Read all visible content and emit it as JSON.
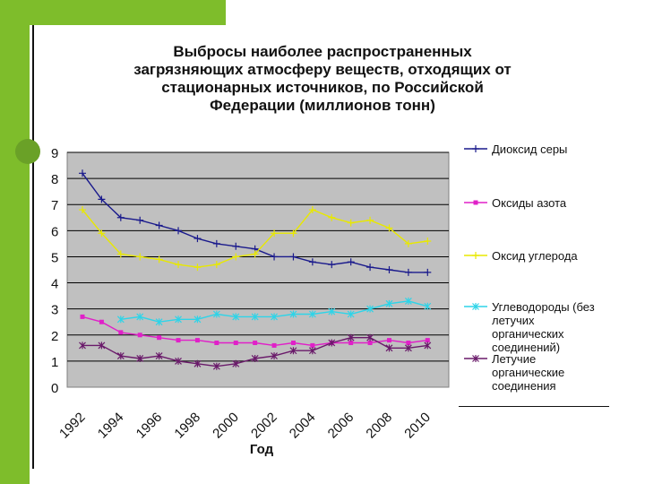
{
  "chart_data": {
    "type": "line",
    "title_lines": [
      "Выбросы наиболее распространенных",
      "загрязняющих атмосферу веществ, отходящих от",
      "стационарных источников, по Российской",
      "Федерации  (миллионов тонн)"
    ],
    "xlabel": "Год",
    "ylabel": "",
    "ylim": [
      0,
      9
    ],
    "yticks": [
      "0",
      "1",
      "2",
      "3",
      "4",
      "5",
      "6",
      "7",
      "8",
      "9"
    ],
    "xtick_labels": [
      "1992",
      "1994",
      "1996",
      "1998",
      "2000",
      "2002",
      "2004",
      "2006",
      "2008",
      "2010"
    ],
    "x": [
      1992,
      1993,
      1994,
      1995,
      1996,
      1997,
      1998,
      1999,
      2000,
      2001,
      2002,
      2003,
      2004,
      2005,
      2006,
      2007,
      2008,
      2009,
      2010
    ],
    "grid": "horizontal",
    "legend_position": "right",
    "series": [
      {
        "name": "Диоксид серы",
        "color": "#1a1a8c",
        "marker": "plus",
        "legend_lines": [
          "Диоксид серы"
        ],
        "values": [
          8.2,
          7.2,
          6.5,
          6.4,
          6.2,
          6.0,
          5.7,
          5.5,
          5.4,
          5.3,
          5.0,
          5.0,
          4.8,
          4.7,
          4.8,
          4.6,
          4.5,
          4.4,
          4.4
        ]
      },
      {
        "name": "Оксиды азота",
        "color": "#e020c8",
        "marker": "square",
        "legend_lines": [
          "Оксиды азота"
        ],
        "values": [
          2.7,
          2.5,
          2.1,
          2.0,
          1.9,
          1.8,
          1.8,
          1.7,
          1.7,
          1.7,
          1.6,
          1.7,
          1.6,
          1.7,
          1.7,
          1.7,
          1.8,
          1.7,
          1.8
        ]
      },
      {
        "name": "Оксид углерода",
        "color": "#e8e800",
        "marker": "plus",
        "legend_lines": [
          "Оксид углерода"
        ],
        "values": [
          6.8,
          5.9,
          5.1,
          5.0,
          4.9,
          4.7,
          4.6,
          4.7,
          5.0,
          5.1,
          5.9,
          5.9,
          6.8,
          6.5,
          6.3,
          6.4,
          6.1,
          5.5,
          5.6
        ]
      },
      {
        "name": "Углеводороды (без летучих органических соединений)",
        "color": "#2ed4e8",
        "marker": "star",
        "legend_lines": [
          "Углеводороды (без",
          "летучих",
          "органических",
          "соединений)"
        ],
        "values": [
          null,
          null,
          2.6,
          2.7,
          2.5,
          2.6,
          2.6,
          2.8,
          2.7,
          2.7,
          2.7,
          2.8,
          2.8,
          2.9,
          2.8,
          3.0,
          3.2,
          3.3,
          3.1
        ]
      },
      {
        "name": "Летучие органические соединения",
        "color": "#6a1a6a",
        "marker": "star",
        "legend_lines": [
          "Летучие",
          "органические",
          "соединения"
        ],
        "values": [
          1.6,
          1.6,
          1.2,
          1.1,
          1.2,
          1.0,
          0.9,
          0.8,
          0.9,
          1.1,
          1.2,
          1.4,
          1.4,
          1.7,
          1.9,
          1.9,
          1.5,
          1.5,
          1.6
        ]
      }
    ]
  }
}
